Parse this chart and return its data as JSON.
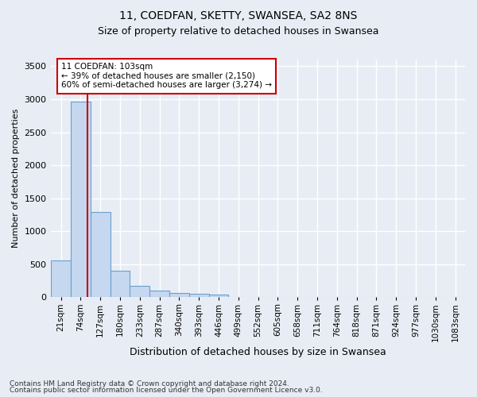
{
  "title": "11, COEDFAN, SKETTY, SWANSEA, SA2 8NS",
  "subtitle": "Size of property relative to detached houses in Swansea",
  "xlabel": "Distribution of detached houses by size in Swansea",
  "ylabel": "Number of detached properties",
  "footnote1": "Contains HM Land Registry data © Crown copyright and database right 2024.",
  "footnote2": "Contains public sector information licensed under the Open Government Licence v3.0.",
  "bin_labels": [
    "21sqm",
    "74sqm",
    "127sqm",
    "180sqm",
    "233sqm",
    "287sqm",
    "340sqm",
    "393sqm",
    "446sqm",
    "499sqm",
    "552sqm",
    "605sqm",
    "658sqm",
    "711sqm",
    "764sqm",
    "818sqm",
    "871sqm",
    "924sqm",
    "977sqm",
    "1030sqm",
    "1083sqm"
  ],
  "bar_values": [
    560,
    2960,
    1290,
    400,
    170,
    100,
    65,
    50,
    40,
    0,
    0,
    0,
    0,
    0,
    0,
    0,
    0,
    0,
    0,
    0,
    0
  ],
  "bar_color": "#c5d8ef",
  "bar_edge_color": "#6aa0cc",
  "vline_x": 1.35,
  "vline_color": "#cc0000",
  "ylim": [
    0,
    3600
  ],
  "yticks": [
    0,
    500,
    1000,
    1500,
    2000,
    2500,
    3000,
    3500
  ],
  "annotation_text": "11 COEDFAN: 103sqm\n← 39% of detached houses are smaller (2,150)\n60% of semi-detached houses are larger (3,274) →",
  "annotation_box_facecolor": "#ffffff",
  "annotation_box_edgecolor": "#cc0000",
  "bg_color": "#e8edf5",
  "plot_bg_color": "#e8edf5",
  "grid_color": "#ffffff",
  "title_fontsize": 10,
  "subtitle_fontsize": 9
}
